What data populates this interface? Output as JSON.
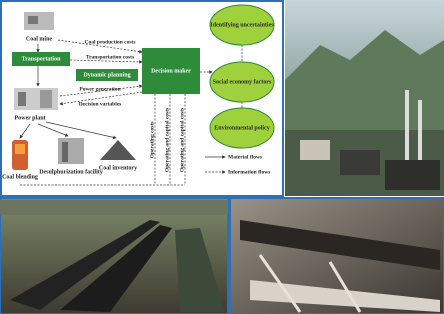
{
  "diagram": {
    "nodes": {
      "coal_mine": "Coal mine",
      "transportation": "Transportation",
      "power_plant": "Power plant",
      "coal_blending": "Coal blending",
      "desulphurization": "Desulphurization facility",
      "coal_inventory": "Coal inventory",
      "dynamic_planning": "Dynamic planning",
      "decision_maker": "Decision maker",
      "uncertainties": "Identifying uncertainties",
      "social": "Social economy factors",
      "policy": "Environmental policy"
    },
    "edges": [
      "Coal production costs",
      "Transportation costs",
      "Power generation",
      "Decision variables",
      "Operating costs",
      "Operating and capital costs",
      "Operating and capital costs"
    ],
    "legend": [
      "Material flows",
      "Information flows"
    ]
  }
}
